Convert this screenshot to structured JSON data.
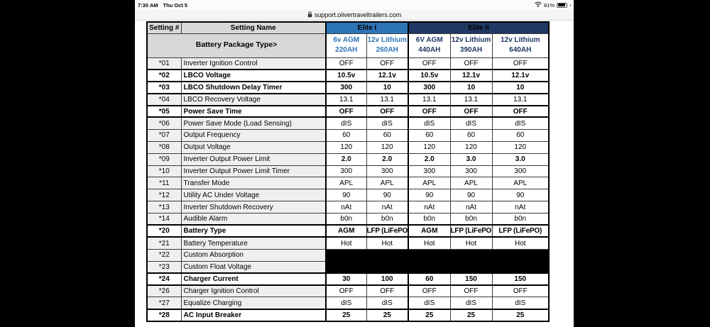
{
  "status_bar": {
    "time": "7:30 AM",
    "date": "Thu Oct 5",
    "battery_percent": "81%",
    "icons": [
      "wifi-icon",
      "battery-icon"
    ]
  },
  "browser": {
    "url": "support.olivertraveltrailers.com",
    "lock_icon": "padlock-icon"
  },
  "table": {
    "headers": {
      "setting_num": "Setting #",
      "setting_name": "Setting Name",
      "elite1": "Elite I",
      "elite2": "Elite II",
      "battery_package": "Battery Package Type>"
    },
    "columns": [
      {
        "group": "elite1",
        "line1": "6v AGM",
        "line2": "220AH"
      },
      {
        "group": "elite1",
        "line1": "12v Lithium",
        "line2": "260AH"
      },
      {
        "group": "elite2",
        "line1": "6V AGM",
        "line2": "440AH"
      },
      {
        "group": "elite2",
        "line1": "12v Lithium",
        "line2": "390AH"
      },
      {
        "group": "elite2",
        "line1": "12v Lithium",
        "line2": "640AH"
      }
    ],
    "rows": [
      {
        "num": "*01",
        "name": "Inverter Ignition Control",
        "values": [
          "OFF",
          "OFF",
          "OFF",
          "OFF",
          "OFF"
        ],
        "bold": false
      },
      {
        "num": "*02",
        "name": "LBCO Voltage",
        "values": [
          "10.5v",
          "12.1v",
          "10.5v",
          "12.1v",
          "12.1v"
        ],
        "bold": true
      },
      {
        "num": "*03",
        "name": "LBCO Shutdown Delay Timer",
        "values": [
          "300",
          "10",
          "300",
          "10",
          "10"
        ],
        "bold": true
      },
      {
        "num": "*04",
        "name": "LBCO Recovery Voltage",
        "values": [
          "13.1",
          "13.1",
          "13.1",
          "13.1",
          "13.1"
        ],
        "bold": false
      },
      {
        "num": "*05",
        "name": "Power Save Time",
        "values": [
          "OFF",
          "OFF",
          "OFF",
          "OFF",
          "OFF"
        ],
        "bold": true
      },
      {
        "num": "*06",
        "name": "Power Save Mode (Load Sensing)",
        "values": [
          "dIS",
          "dIS",
          "dIS",
          "dIS",
          "dIS"
        ],
        "bold": false
      },
      {
        "num": "*07",
        "name": "Output Frequency",
        "values": [
          "60",
          "60",
          "60",
          "60",
          "60"
        ],
        "bold": false
      },
      {
        "num": "*08",
        "name": "Output Voltage",
        "values": [
          "120",
          "120",
          "120",
          "120",
          "120"
        ],
        "bold": false
      },
      {
        "num": "*09",
        "name": "Inverter Output Power Limit",
        "values": [
          "2.0",
          "2.0",
          "2.0",
          "3.0",
          "3.0"
        ],
        "bold": false,
        "bold_values": true
      },
      {
        "num": "*10",
        "name": "Inverter Output Power Limit Timer",
        "values": [
          "300",
          "300",
          "300",
          "300",
          "300"
        ],
        "bold": false
      },
      {
        "num": "*11",
        "name": "Transfer Mode",
        "values": [
          "APL",
          "APL",
          "APL",
          "APL",
          "APL"
        ],
        "bold": false
      },
      {
        "num": "*12",
        "name": "Utility AC Under Voltage",
        "values": [
          "90",
          "90",
          "90",
          "90",
          "90"
        ],
        "bold": false
      },
      {
        "num": "*13",
        "name": "Inverter Shutdown Recovery",
        "values": [
          "nAt",
          "nAt",
          "nAt",
          "nAt",
          "nAt"
        ],
        "bold": false
      },
      {
        "num": "*14",
        "name": "Audible Alarm",
        "values": [
          "b0n",
          "b0n",
          "b0n",
          "b0n",
          "b0n"
        ],
        "bold": false
      },
      {
        "num": "*20",
        "name": "Battery Type",
        "values": [
          "AGM",
          "LFP (LiFePO)",
          "AGM",
          "LFP (LiFePO)",
          "LFP (LiFePO)"
        ],
        "bold": true
      },
      {
        "num": "*21",
        "name": "Battery Temperature",
        "values": [
          "Hot",
          "Hot",
          "Hot",
          "Hot",
          "Hot"
        ],
        "bold": false
      },
      {
        "num": "*22",
        "name": "Custom Absorption",
        "values": [
          "",
          "",
          "",
          "",
          ""
        ],
        "bold": false,
        "blackout": true
      },
      {
        "num": "*23",
        "name": "Custom Float Voltage",
        "values": [
          "",
          "",
          "",
          "",
          ""
        ],
        "bold": false,
        "blackout": true
      },
      {
        "num": "*24",
        "name": "Charger Current",
        "values": [
          "30",
          "100",
          "60",
          "150",
          "150"
        ],
        "bold": true
      },
      {
        "num": "*26",
        "name": "Charger Ignition Control",
        "values": [
          "OFF",
          "OFF",
          "OFF",
          "OFF",
          "OFF"
        ],
        "bold": false
      },
      {
        "num": "*27",
        "name": "Equalize Charging",
        "values": [
          "dIS",
          "dIS",
          "dIS",
          "dIS",
          "dIS"
        ],
        "bold": false
      },
      {
        "num": "*28",
        "name": "AC Input Breaker",
        "values": [
          "25",
          "25",
          "25",
          "25",
          "25"
        ],
        "bold": true
      }
    ],
    "colors": {
      "elite1_blue": "#2E75B6",
      "elite2_navy": "#1F3864",
      "header_gray": "#D8D8D8",
      "row_gray": "#EFEFEF",
      "blackout": "#000000"
    }
  }
}
